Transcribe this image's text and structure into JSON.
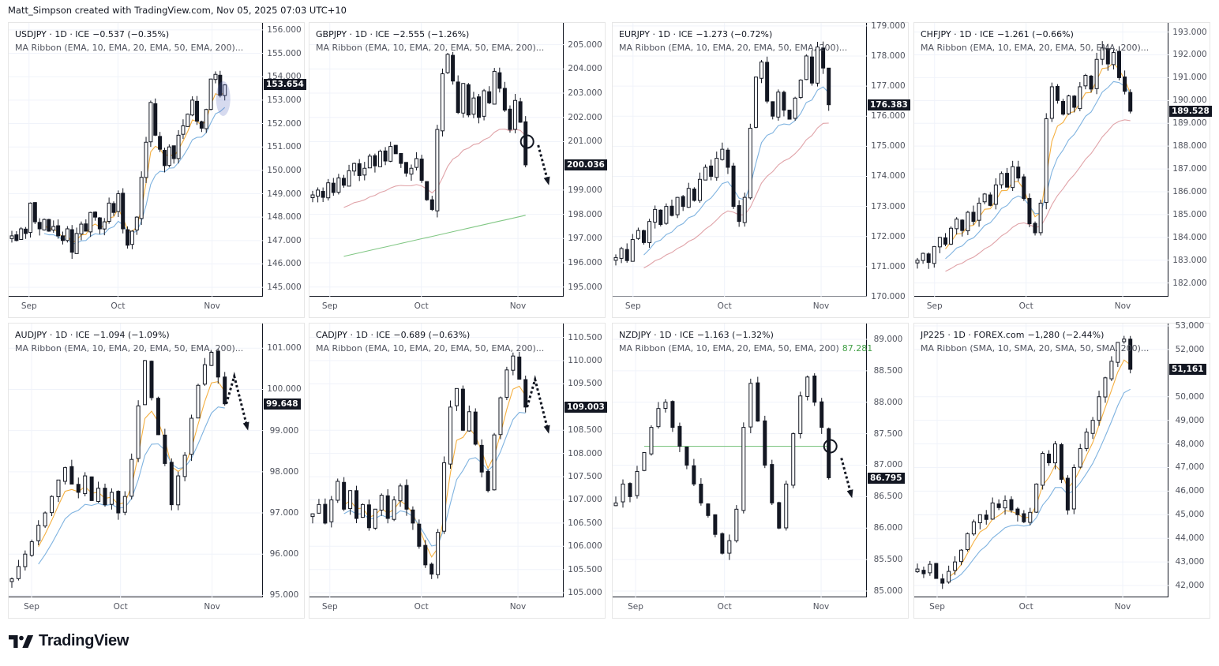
{
  "credit": "Matt_Simpson created with TradingView.com, Nov 05, 2025 07:03 UTC+10",
  "brand": {
    "name": "TradingView",
    "icon": "tradingview-logo-icon"
  },
  "colors": {
    "up_fill": "#ffffff",
    "down_fill": "#131722",
    "wick": "#131722",
    "ema10": "#f5b041",
    "ema20": "#7fb3e0",
    "ema50": "#e0a3a8",
    "ema200": "#81c784",
    "grid": "#f0f3fa"
  },
  "chart_data": [
    {
      "type": "candlestick",
      "symbol": "USDJPY",
      "title": "USDJPY · 1D · ICE",
      "change": "−0.537 (−0.35%)",
      "indicator": "MA Ribbon (EMA, 10, EMA, 20, EMA, 50, EMA, 200)...",
      "indicator_value": "",
      "last_price": "153.654",
      "last_value": 153.654,
      "yticks": [
        "156.000",
        "155.000",
        "154.000",
        "153.000",
        "152.000",
        "151.000",
        "150.000",
        "149.000",
        "148.000",
        "147.000",
        "146.000",
        "145.000"
      ],
      "ylim": [
        144.6,
        156.3
      ],
      "xticks": [
        {
          "label": "Sep",
          "pos": 0.08
        },
        {
          "label": "Oct",
          "pos": 0.43
        },
        {
          "label": "Nov",
          "pos": 0.8
        }
      ],
      "ohlc_close_path": [
        147.2,
        147.0,
        147.5,
        147.3,
        148.6,
        147.8,
        147.5,
        147.9,
        147.4,
        147.6,
        147.2,
        147.0,
        147.5,
        146.5,
        147.3,
        147.7,
        147.4,
        148.2,
        148.0,
        147.5,
        147.8,
        148.6,
        148.2,
        149.0,
        147.5,
        146.8,
        147.4,
        148.0,
        149.7,
        151.2,
        152.9,
        151.5,
        150.9,
        150.2,
        151.0,
        150.5,
        151.5,
        151.9,
        152.4,
        153.0,
        152.1,
        151.8,
        152.6,
        153.9,
        154.1,
        153.2,
        153.65
      ],
      "ema_lines": [
        {
          "name": "EMA 10",
          "start": 0.4,
          "values_from": "ema10"
        },
        {
          "name": "EMA 20",
          "start": 0.45,
          "values_from": "ema20"
        }
      ],
      "annotations": [
        {
          "type": "ellipse",
          "desc": "highlight on last candles"
        }
      ]
    },
    {
      "type": "candlestick",
      "symbol": "GBPJPY",
      "title": "GBPJPY · 1D · ICE",
      "change": "−2.555 (−1.26%)",
      "indicator": "MA Ribbon (EMA, 10, EMA, 20, EMA, 50, EMA, 200)...",
      "indicator_value": "",
      "last_price": "200.036",
      "last_value": 200.036,
      "yticks": [
        "205.000",
        "204.000",
        "203.000",
        "202.000",
        "201.000",
        "199.000",
        "198.000",
        "197.000",
        "196.000",
        "195.000"
      ],
      "ylim": [
        194.6,
        205.9
      ],
      "xticks": [
        {
          "label": "Sep",
          "pos": 0.08
        },
        {
          "label": "Oct",
          "pos": 0.44
        },
        {
          "label": "Nov",
          "pos": 0.82
        }
      ],
      "ohlc_close_path": [
        198.8,
        199.0,
        198.7,
        199.3,
        198.9,
        199.5,
        199.2,
        199.8,
        200.1,
        199.6,
        199.9,
        200.4,
        200.0,
        200.6,
        200.2,
        200.8,
        200.5,
        200.1,
        199.7,
        199.9,
        200.3,
        199.4,
        198.6,
        198.2,
        201.5,
        203.8,
        204.6,
        203.5,
        202.2,
        203.4,
        202.1,
        202.8,
        202.0,
        203.1,
        202.6,
        203.9,
        203.2,
        202.3,
        201.5,
        202.7,
        201.8,
        200.04
      ],
      "ema_lines": [
        {
          "name": "EMA 50"
        },
        {
          "name": "EMA 200"
        }
      ],
      "annotations": [
        {
          "type": "circle",
          "desc": "break of EMA 50"
        },
        {
          "type": "dotted-arrow",
          "direction": "down"
        }
      ]
    },
    {
      "type": "candlestick",
      "symbol": "EURJPY",
      "title": "EURJPY · 1D · ICE",
      "change": "−1.273 (−0.72%)",
      "indicator": "MA Ribbon (EMA, 10, EMA, 20, EMA, 50, EMA, 200)...",
      "indicator_value": "",
      "last_price": "176.383",
      "last_value": 176.383,
      "yticks": [
        "179.000",
        "178.000",
        "177.000",
        "176.000",
        "175.000",
        "174.000",
        "173.000",
        "172.000",
        "171.000",
        "170.000"
      ],
      "ylim": [
        170.0,
        179.1
      ],
      "xticks": [
        {
          "label": "Sep",
          "pos": 0.08
        },
        {
          "label": "Oct",
          "pos": 0.44
        },
        {
          "label": "Nov",
          "pos": 0.82
        }
      ],
      "ohlc_close_path": [
        171.3,
        171.6,
        171.2,
        171.9,
        172.2,
        171.8,
        172.5,
        172.9,
        172.4,
        173.0,
        172.7,
        173.3,
        173.0,
        173.6,
        173.2,
        173.9,
        174.3,
        174.0,
        174.6,
        174.9,
        174.3,
        173.0,
        172.5,
        173.3,
        175.6,
        177.3,
        177.8,
        176.5,
        176.0,
        176.8,
        176.2,
        175.9,
        176.6,
        177.2,
        178.0,
        177.1,
        178.3,
        177.6,
        176.38
      ],
      "ema_lines": [
        {
          "name": "EMA 20"
        },
        {
          "name": "EMA 50"
        }
      ],
      "annotations": []
    },
    {
      "type": "candlestick",
      "symbol": "CHFJPY",
      "title": "CHFJPY · 1D · ICE",
      "change": "−1.261 (−0.66%)",
      "indicator": "MA Ribbon (EMA, 10, EMA, 20, EMA, 50, EMA, 200)...",
      "indicator_value": "",
      "last_price": "189.528",
      "last_value": 189.528,
      "yticks": [
        "193.000",
        "192.000",
        "191.000",
        "190.000",
        "189.000",
        "188.000",
        "187.000",
        "186.000",
        "185.000",
        "184.000",
        "183.000",
        "182.000"
      ],
      "ylim": [
        181.4,
        193.4
      ],
      "xticks": [
        {
          "label": "Sep",
          "pos": 0.08
        },
        {
          "label": "Oct",
          "pos": 0.44
        },
        {
          "label": "Nov",
          "pos": 0.82
        }
      ],
      "ohlc_close_path": [
        183.0,
        183.3,
        182.9,
        183.6,
        184.0,
        183.7,
        184.4,
        184.8,
        184.3,
        185.1,
        184.7,
        185.5,
        185.9,
        185.4,
        186.3,
        186.8,
        186.2,
        187.1,
        186.6,
        185.7,
        184.6,
        184.2,
        185.5,
        189.2,
        190.6,
        190.0,
        189.4,
        190.2,
        189.7,
        190.6,
        191.1,
        190.5,
        191.8,
        192.3,
        191.6,
        192.1,
        191.0,
        190.4,
        189.53
      ],
      "ema_lines": [
        {
          "name": "EMA 10"
        },
        {
          "name": "EMA 20"
        },
        {
          "name": "EMA 50"
        }
      ],
      "annotations": []
    },
    {
      "type": "candlestick",
      "symbol": "AUDJPY",
      "title": "AUDJPY · 1D · ICE",
      "change": "−1.094 (−1.09%)",
      "indicator": "MA Ribbon (EMA, 10, EMA, 20, EMA, 50, EMA, 200)...",
      "indicator_value": "",
      "last_price": "99.648",
      "last_value": 99.648,
      "yticks": [
        "101.000",
        "100.000",
        "99.000",
        "98.000",
        "97.000",
        "96.000",
        "95.000"
      ],
      "ylim": [
        94.95,
        101.6
      ],
      "xticks": [
        {
          "label": "Sep",
          "pos": 0.09
        },
        {
          "label": "Oct",
          "pos": 0.44
        },
        {
          "label": "Nov",
          "pos": 0.8
        }
      ],
      "ohlc_close_path": [
        95.4,
        95.7,
        96.0,
        96.3,
        96.7,
        97.0,
        97.4,
        97.8,
        98.1,
        97.7,
        97.5,
        97.9,
        97.3,
        97.6,
        97.2,
        97.5,
        97.0,
        97.4,
        98.3,
        99.6,
        100.7,
        99.8,
        98.9,
        98.2,
        97.2,
        97.9,
        98.4,
        99.3,
        100.1,
        100.6,
        100.9,
        100.3,
        99.65
      ],
      "ema_lines": [
        {
          "name": "EMA 10"
        },
        {
          "name": "EMA 20"
        }
      ],
      "annotations": [
        {
          "type": "dotted-arrow",
          "direction": "up-then-down"
        }
      ]
    },
    {
      "type": "candlestick",
      "symbol": "CADJPY",
      "title": "CADJPY · 1D · ICE",
      "change": "−0.689 (−0.63%)",
      "indicator": "MA Ribbon (EMA, 10, EMA, 20, EMA, 50, EMA, 200)...",
      "indicator_value": "",
      "last_price": "109.003",
      "last_value": 109.003,
      "yticks": [
        "110.500",
        "110.000",
        "109.500",
        "108.500",
        "108.000",
        "107.500",
        "107.000",
        "106.500",
        "106.000",
        "105.500",
        "105.000"
      ],
      "ylim": [
        104.9,
        110.8
      ],
      "xticks": [
        {
          "label": "Sep",
          "pos": 0.08
        },
        {
          "label": "Oct",
          "pos": 0.44
        },
        {
          "label": "Nov",
          "pos": 0.82
        }
      ],
      "ohlc_close_path": [
        106.7,
        106.9,
        106.5,
        107.0,
        107.4,
        106.8,
        107.2,
        106.6,
        106.9,
        106.4,
        106.8,
        107.1,
        106.6,
        107.0,
        107.3,
        106.8,
        106.5,
        106.0,
        105.6,
        105.4,
        106.3,
        107.8,
        109.0,
        109.4,
        108.5,
        108.9,
        108.2,
        107.6,
        107.2,
        108.4,
        109.2,
        109.8,
        110.1,
        109.6,
        109.0
      ],
      "ema_lines": [
        {
          "name": "EMA 10"
        },
        {
          "name": "EMA 20"
        }
      ],
      "annotations": [
        {
          "type": "dotted-arrow",
          "direction": "up-then-down"
        }
      ]
    },
    {
      "type": "candlestick",
      "symbol": "NZDJPY",
      "title": "NZDJPY · 1D · ICE",
      "change": "−1.163 (−1.32%)",
      "indicator": "MA Ribbon (EMA, 10, EMA, 20, EMA, 50, EMA, 200)",
      "indicator_value": "87.281",
      "last_price": "86.795",
      "last_value": 86.795,
      "yticks": [
        "89.000",
        "88.500",
        "88.000",
        "87.500",
        "87.000",
        "86.500",
        "86.000",
        "85.500",
        "85.000"
      ],
      "ylim": [
        84.9,
        89.25
      ],
      "xticks": [
        {
          "label": "Sep",
          "pos": 0.09
        },
        {
          "label": "Oct",
          "pos": 0.44
        },
        {
          "label": "Nov",
          "pos": 0.82
        }
      ],
      "ohlc_close_path": [
        86.4,
        86.7,
        86.5,
        86.9,
        87.2,
        87.6,
        87.9,
        88.0,
        87.6,
        87.3,
        87.0,
        86.7,
        86.4,
        86.2,
        85.9,
        85.6,
        85.8,
        86.3,
        87.6,
        88.3,
        87.7,
        87.0,
        86.4,
        86.0,
        86.7,
        87.5,
        88.1,
        88.4,
        88.0,
        87.6,
        86.8
      ],
      "ema_lines": [
        {
          "name": "EMA 200"
        }
      ],
      "annotations": [
        {
          "type": "circle",
          "desc": "break of EMA 200"
        },
        {
          "type": "dotted-arrow",
          "direction": "down"
        }
      ]
    },
    {
      "type": "candlestick",
      "symbol": "JP225",
      "title": "JP225 · 1D · FOREX.com",
      "change": "−1,280 (−2.44%)",
      "indicator": "MA Ribbon (SMA, 10, SMA, 20, SMA, 50, SMA, 200)...",
      "indicator_value": "",
      "last_price": "51,161",
      "last_value": 51161,
      "yticks": [
        "53,000",
        "52,000",
        "50,000",
        "49,000",
        "48,000",
        "47,000",
        "46,000",
        "45,000",
        "44,000",
        "43,000",
        "42,000"
      ],
      "ylim": [
        41500,
        53100
      ],
      "xticks": [
        {
          "label": "Sep",
          "pos": 0.09
        },
        {
          "label": "Oct",
          "pos": 0.44
        },
        {
          "label": "Nov",
          "pos": 0.82
        }
      ],
      "ohlc_close_path": [
        42700,
        42500,
        42900,
        42300,
        42100,
        42600,
        43000,
        43500,
        44200,
        44700,
        45000,
        44800,
        45500,
        45300,
        45600,
        45200,
        45000,
        44700,
        45100,
        46300,
        47600,
        47200,
        48000,
        46500,
        45200,
        47000,
        47800,
        48500,
        49000,
        50000,
        50800,
        51500,
        52300,
        52440,
        51160
      ],
      "ema_lines": [
        {
          "name": "SMA 10"
        },
        {
          "name": "SMA 20"
        }
      ],
      "annotations": []
    }
  ]
}
